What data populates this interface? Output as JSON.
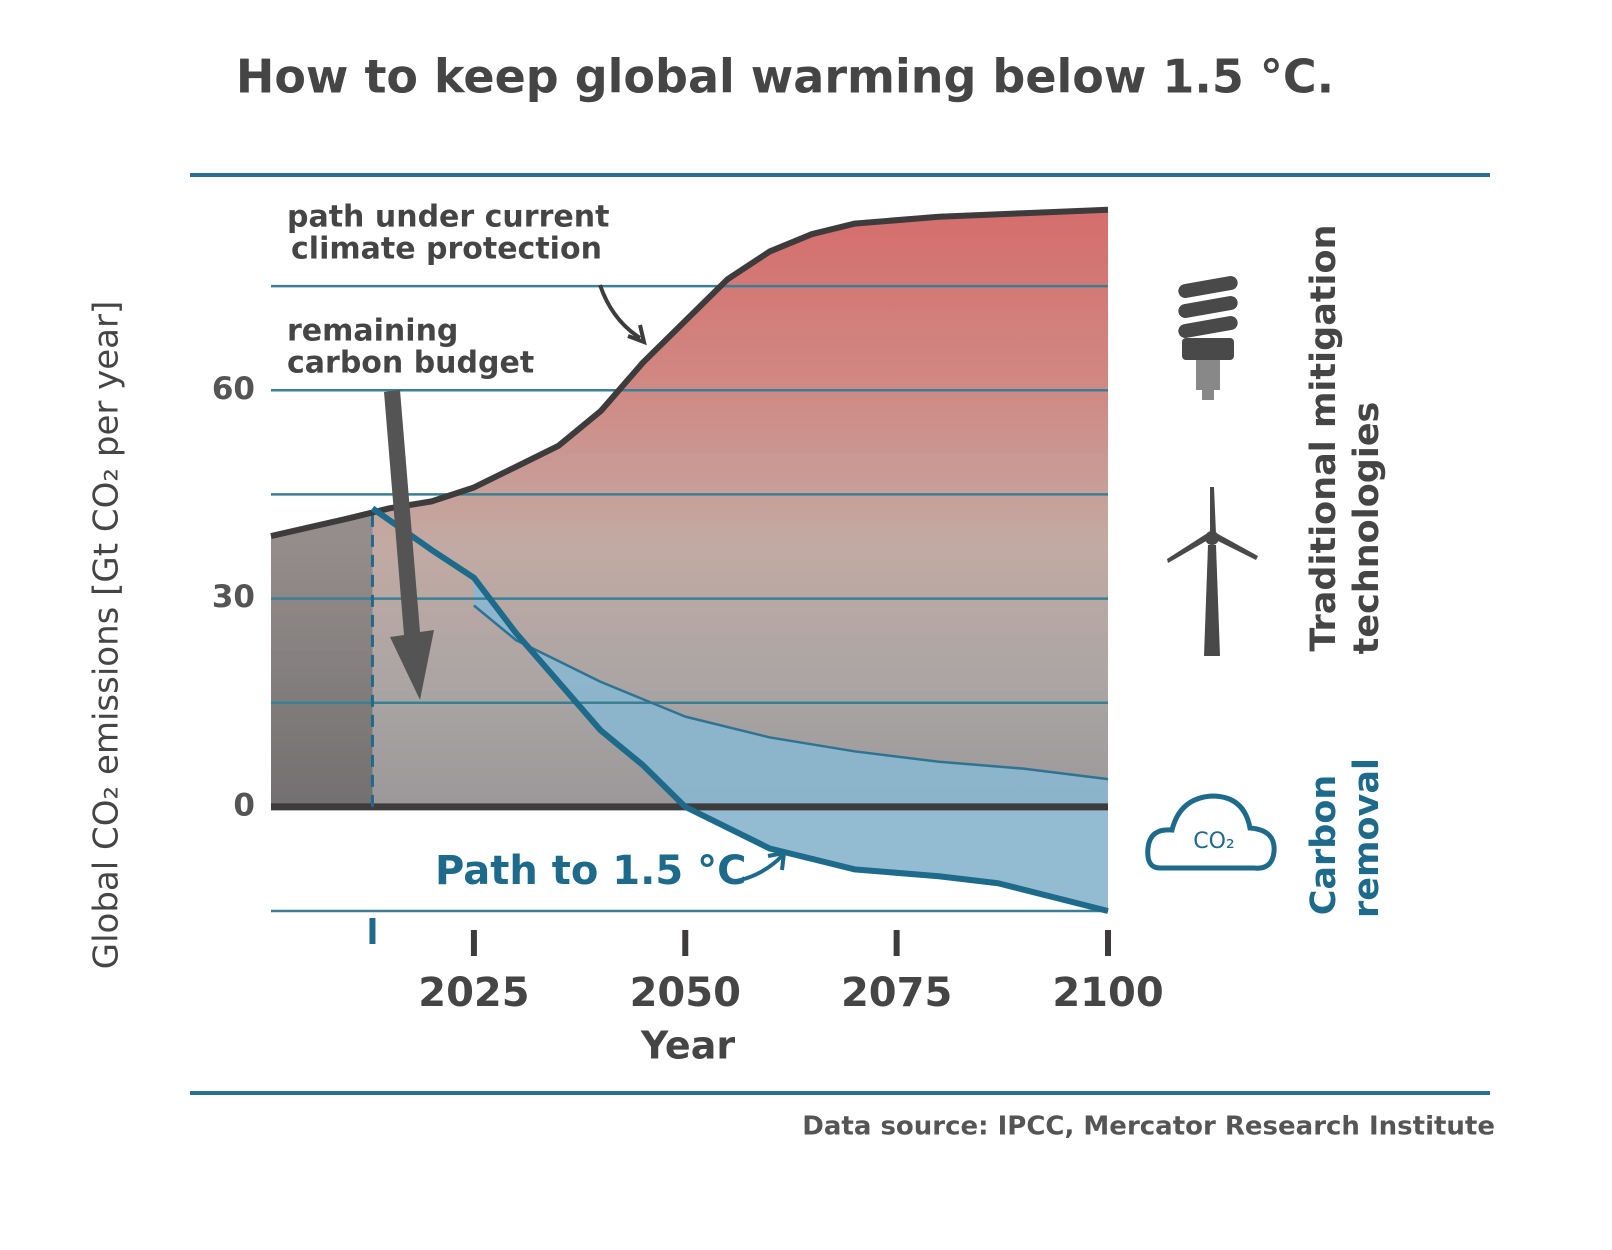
{
  "chart_data": {
    "type": "area-line",
    "title": "How to keep global warming below 1.5 °C.",
    "y_label": "Global CO₂ emissions [Gt CO₂ per year]",
    "x_label": "Year",
    "source": "Data source: IPCC, Mercator Research Institute",
    "xlim": [
      2001,
      2100
    ],
    "xticks": [
      2025,
      2050,
      2075,
      2100
    ],
    "budget_year": 2013,
    "ylim": [
      -15,
      90
    ],
    "yticks": [
      0,
      30,
      60
    ],
    "grid_lines": [
      -15,
      15,
      45,
      75
    ],
    "series": [
      {
        "color": "#3d3b3c",
        "x": [
          2001,
          2010,
          2015,
          2020,
          2025,
          2030,
          2035,
          2040,
          2045,
          2050,
          2055,
          2060,
          2065,
          2070,
          2080,
          2090,
          2100
        ],
        "values": [
          39,
          41.5,
          43,
          44,
          46,
          49,
          52,
          57,
          64,
          70,
          76,
          80,
          82.5,
          84,
          85,
          85.5,
          86
        ]
      },
      {
        "color": "#1e6a8a",
        "x": [
          2013,
          2020,
          2025,
          2030,
          2035,
          2040,
          2045,
          2050,
          2055,
          2060,
          2070,
          2080,
          2087,
          2100
        ],
        "values": [
          43,
          37,
          33,
          25,
          18,
          11,
          6,
          0,
          -3,
          -6,
          -9,
          -10,
          -11,
          -15
        ]
      },
      {
        "color": "#2f7393",
        "x": [
          2025,
          2030,
          2035,
          2040,
          2050,
          2060,
          2070,
          2080,
          2090,
          2100
        ],
        "values": [
          29,
          24,
          21,
          18,
          13,
          10,
          8,
          6.5,
          5.5,
          4
        ]
      }
    ],
    "annotations": {
      "current_path": [
        "path under current",
        "climate protection"
      ],
      "budget": [
        "remaining",
        "carbon budget"
      ],
      "path_label": "Path to 1.5 °C",
      "traditional": [
        "Traditional mitigation",
        "technologies"
      ],
      "removal": [
        "Carbon",
        "removal"
      ],
      "cloud_label": "CO₂"
    }
  }
}
